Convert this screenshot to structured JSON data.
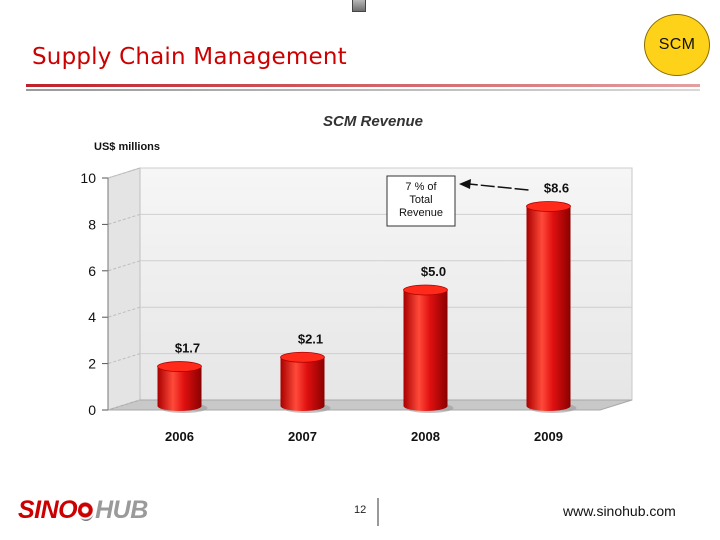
{
  "slide": {
    "title": "Supply Chain Management",
    "badge": "SCM",
    "page_number": "12",
    "website": "www.sinohub.com",
    "logo": {
      "part1": "SINO",
      "part2": "HUB"
    }
  },
  "colors": {
    "title": "#cc0000",
    "bar": "#e01010",
    "badge": "#ffd21a",
    "plot_bg": "#f0f0f0"
  },
  "chart_data": {
    "type": "bar",
    "title": "SCM Revenue",
    "ylabel": "US$ millions",
    "xlabel": "",
    "categories": [
      "2006",
      "2007",
      "2008",
      "2009"
    ],
    "values": [
      1.7,
      2.1,
      5.0,
      8.6
    ],
    "data_labels": [
      "$1.7",
      "$2.1",
      "$5.0",
      "$8.6"
    ],
    "ylim": [
      0,
      10
    ],
    "yticks": [
      0,
      2,
      4,
      6,
      8,
      10
    ],
    "grid": true,
    "style": "3d-cylinder",
    "annotation": {
      "text_lines": [
        "7 % of",
        "Total",
        "Revenue"
      ],
      "target_category": "2009"
    }
  }
}
